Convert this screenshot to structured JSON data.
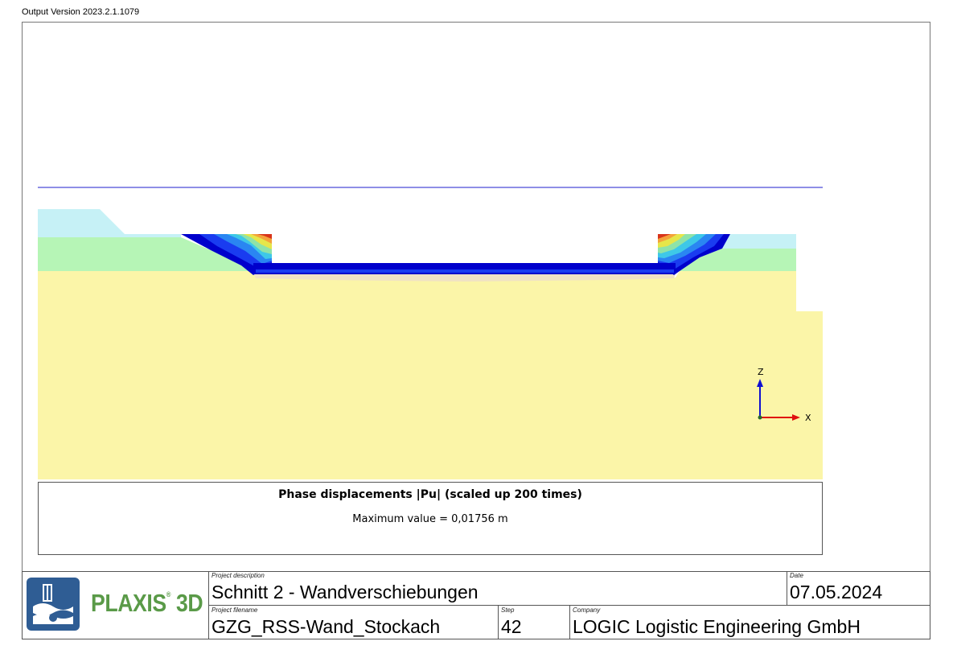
{
  "header": {
    "output_version": "Output Version 2023.2.1.1079"
  },
  "plot": {
    "legend": {
      "title": "Phase displacements |Pu| (scaled up 200 times)",
      "max_value": "Maximum value = 0,01756 m"
    },
    "axes": {
      "z_label": "Z",
      "x_label": "X"
    },
    "colors": {
      "water_level_line": "#4a4ad8",
      "soil_top_layer": "#c6f1f6",
      "soil_middle_layer": "#b6f5b6",
      "soil_bottom_layer": "#fbf5a8",
      "excavation_base": "#f0e2c4",
      "displacement_low": "#0000cc",
      "displacement_high": "#cc2200",
      "x_axis": "#e01010",
      "z_axis": "#1010d0"
    }
  },
  "title_block": {
    "logo_text": "PLAXIS",
    "logo_suffix": "3D",
    "logo_mark": "®",
    "project_description_caption": "Project description",
    "project_description": "Schnitt 2 - Wandverschiebungen",
    "date_caption": "Date",
    "date": "07.05.2024",
    "project_filename_caption": "Project filename",
    "project_filename": "GZG_RSS-Wand_Stockach",
    "step_caption": "Step",
    "step": "42",
    "company_caption": "Company",
    "company": "LOGIC Logistic Engineering GmbH"
  }
}
